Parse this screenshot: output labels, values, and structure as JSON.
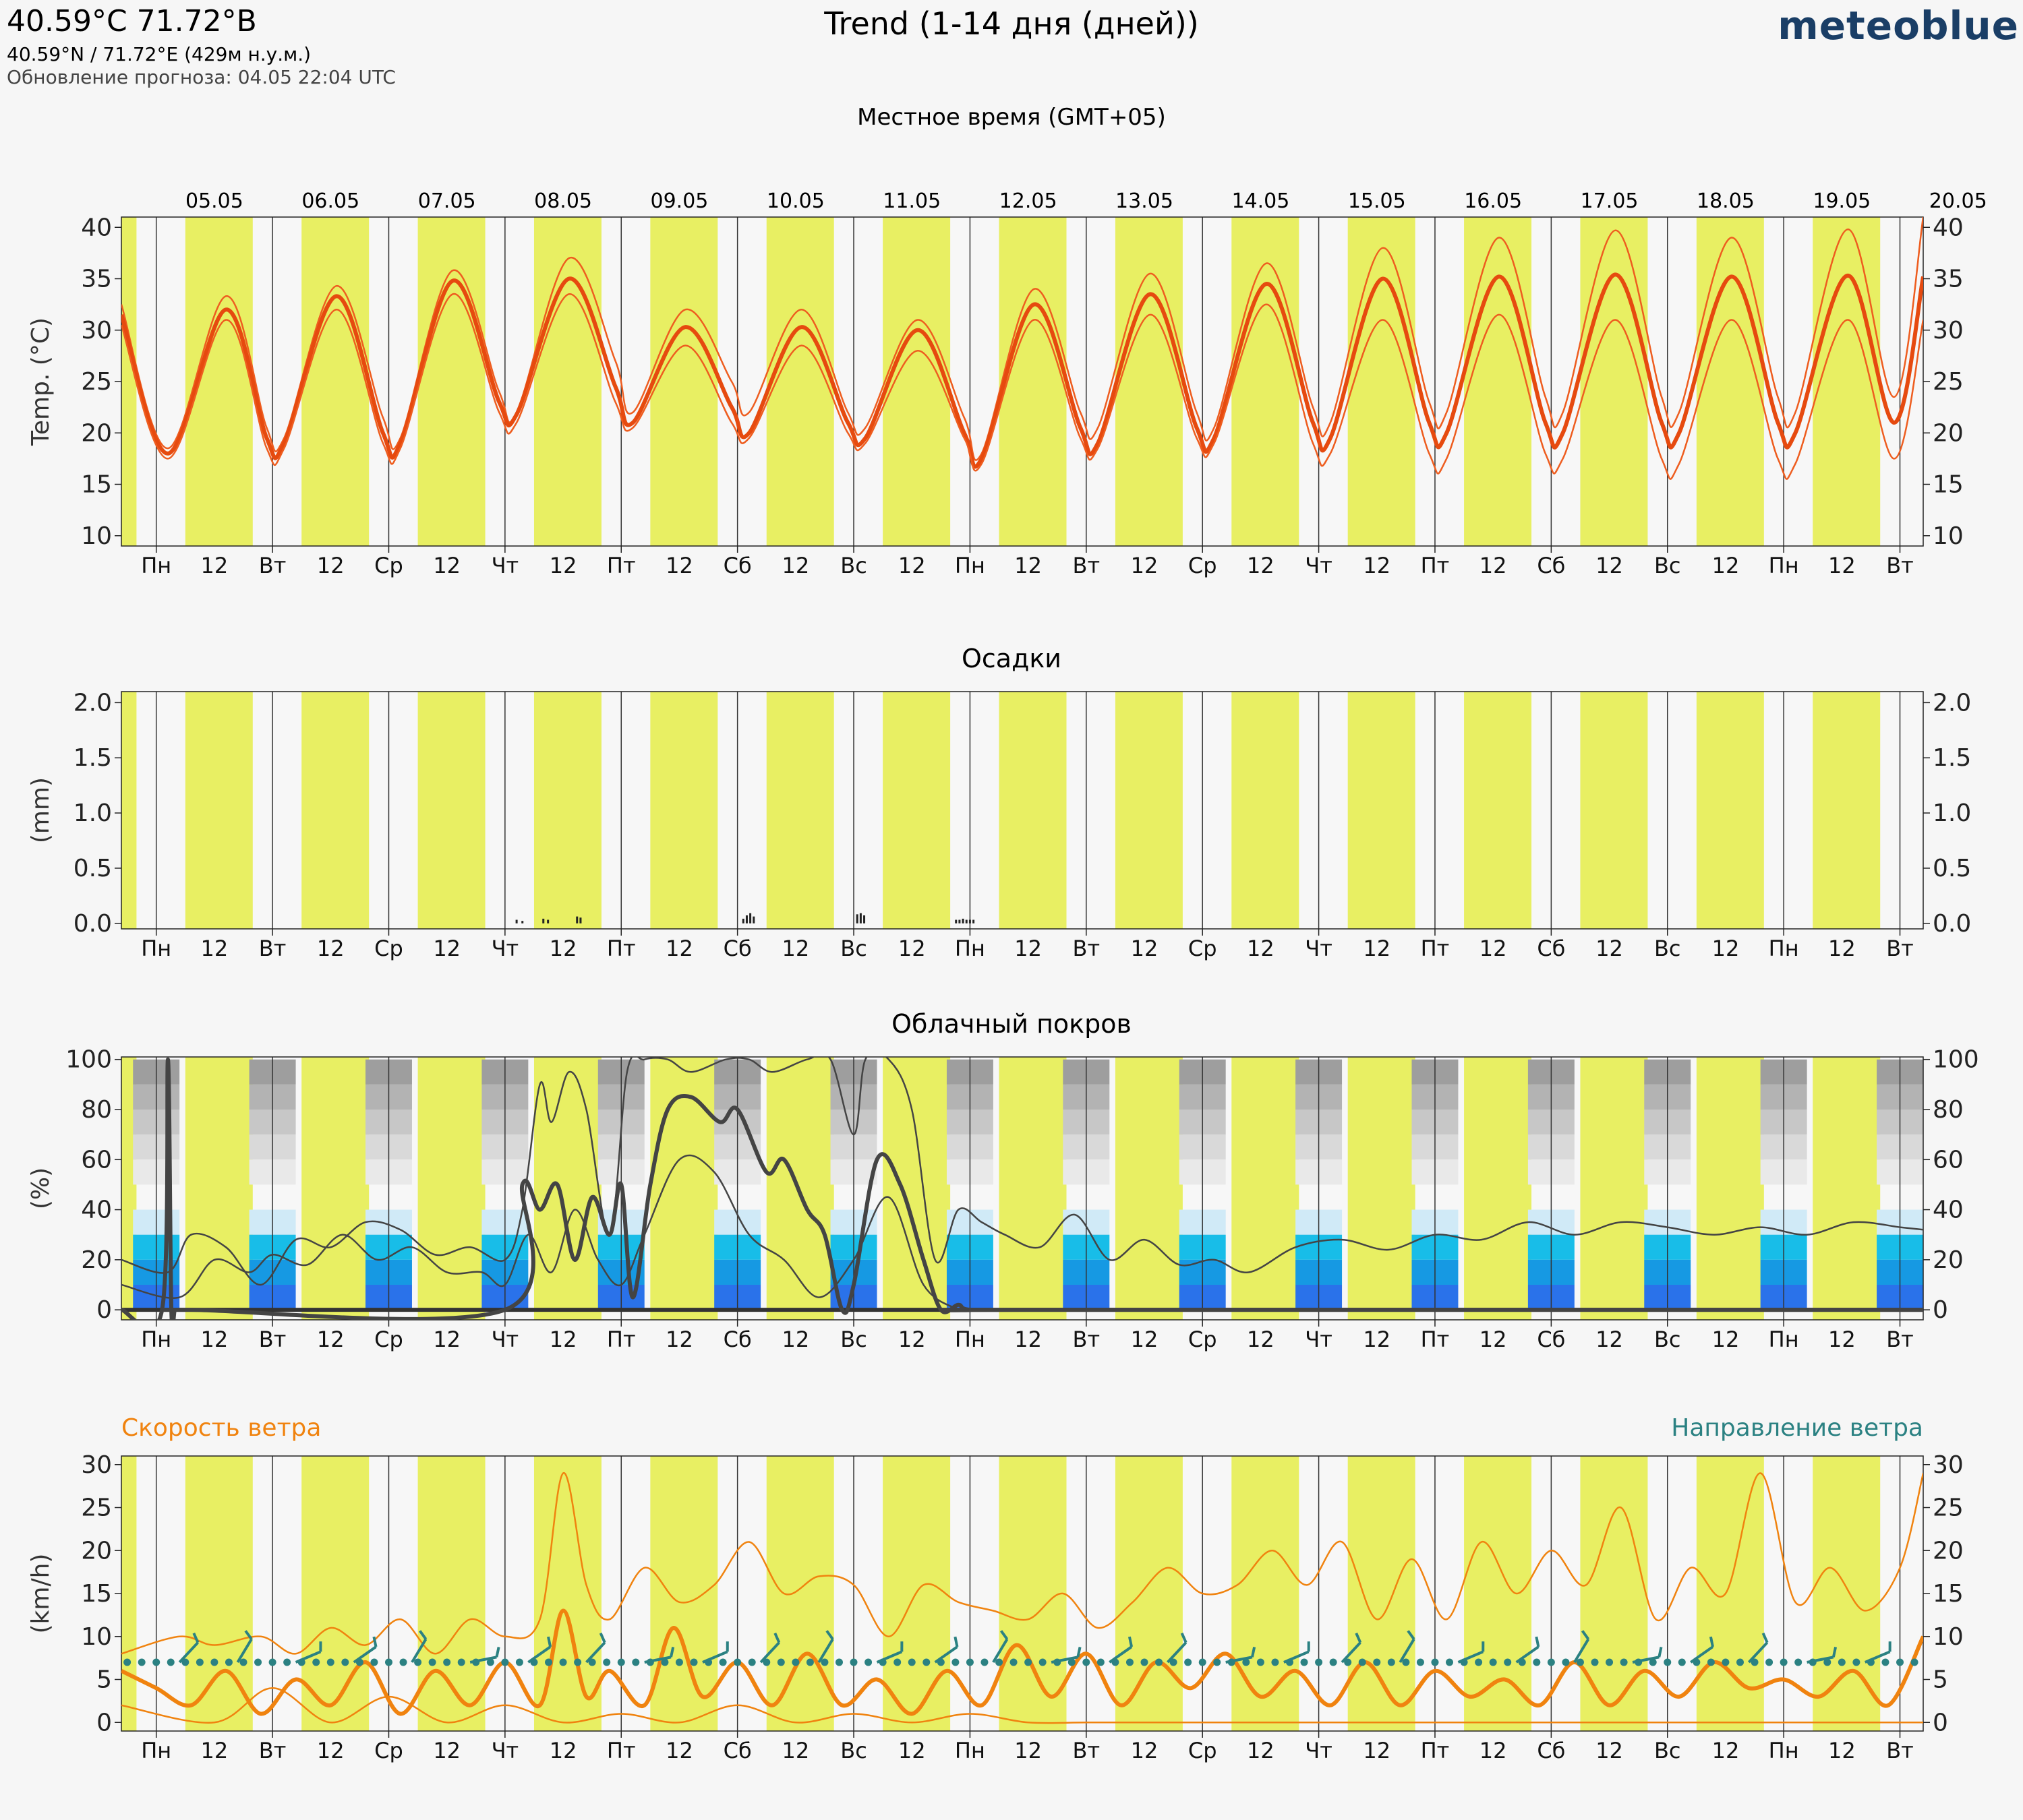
{
  "header": {
    "coords": "40.59°C 71.72°В",
    "subtitle": "40.59°N / 71.72°E (429м н.у.м.)",
    "updated": "Обновление прогноза: 04.05 22:04 UTC",
    "title": "Trend (1-14 дня (дней))",
    "brand": "meteoblue",
    "local_time": "Местное время (GMT+05)"
  },
  "dates": [
    "05.05",
    "06.05",
    "07.05",
    "08.05",
    "09.05",
    "10.05",
    "11.05",
    "12.05",
    "13.05",
    "14.05",
    "15.05",
    "16.05",
    "17.05",
    "18.05",
    "19.05",
    "20.05"
  ],
  "weekdays": [
    "Пн",
    "Вт",
    "Ср",
    "Чт",
    "Пт",
    "Сб",
    "Вс",
    "Пн",
    "Вт",
    "Ср",
    "Чт",
    "Пт",
    "Сб",
    "Вс",
    "Пн",
    "Вт"
  ],
  "noon_label": "12",
  "colors": {
    "daylight": "#e8ef63",
    "temperature": "#e64a0f",
    "temperature_band": "#ee5d1f",
    "precip": "#222222",
    "cloud_line": "#444444",
    "wind_speed": "#f0830f",
    "wind_dir": "#2b8182",
    "cloud_high": [
      "#9e9e9e",
      "#b3b3b3",
      "#c7c7c7",
      "#d9d9d9",
      "#e9e9e9"
    ],
    "cloud_low": [
      "#d0eaf7",
      "#18bde8",
      "#1699e3",
      "#2a72ea"
    ]
  },
  "chart_data": [
    {
      "type": "line",
      "id": "temperature",
      "ylabel": "Temp. (°C)",
      "ylim": [
        9,
        41
      ],
      "yticks": [
        10,
        15,
        20,
        25,
        30,
        35,
        40
      ],
      "x_unit": "days since 05.05 00:00 local",
      "series": [
        {
          "role": "max",
          "x": [
            -0.3,
            0.1,
            0.6,
            0.95,
            1.1,
            1.55,
            1.95,
            2.1,
            2.55,
            2.95,
            3.1,
            3.55,
            3.95,
            4.1,
            4.55,
            4.95,
            5.1,
            5.55,
            5.95,
            6.1,
            6.55,
            6.95,
            7.1,
            7.55,
            7.95,
            8.1,
            8.55,
            8.95,
            9.1,
            9.55,
            9.95,
            10.1,
            10.55,
            10.95,
            11.1,
            11.55,
            11.95,
            12.1,
            12.55,
            12.95,
            13.1,
            13.55,
            13.95,
            14.1,
            14.55,
            14.95,
            15.2
          ],
          "y": [
            32.5,
            18.5,
            33.3,
            20.5,
            19.5,
            34.3,
            21.5,
            19.5,
            35.8,
            24,
            22,
            37,
            27,
            22,
            32,
            25,
            22,
            32,
            22,
            20.5,
            31,
            21.5,
            18,
            34,
            22,
            20.5,
            35.5,
            22,
            20.5,
            36.5,
            22.5,
            21,
            38,
            23,
            22,
            39,
            23.5,
            22,
            39.7,
            23.5,
            22,
            39,
            23.5,
            22,
            39.8,
            23.5,
            41
          ]
        },
        {
          "role": "mean",
          "x": [
            -0.3,
            0.1,
            0.6,
            0.95,
            1.1,
            1.55,
            1.95,
            2.1,
            2.55,
            2.95,
            3.1,
            3.55,
            3.95,
            4.1,
            4.55,
            4.95,
            5.1,
            5.55,
            5.95,
            6.1,
            6.55,
            6.95,
            7.1,
            7.55,
            7.95,
            8.1,
            8.55,
            8.95,
            9.1,
            9.55,
            9.95,
            10.1,
            10.55,
            10.95,
            11.1,
            11.55,
            11.95,
            12.1,
            12.55,
            12.95,
            13.1,
            13.55,
            13.95,
            14.1,
            14.55,
            14.95,
            15.2
          ],
          "y": [
            31.5,
            18,
            32,
            19.5,
            19,
            33.3,
            20,
            19,
            34.8,
            23,
            21.8,
            35,
            24.5,
            21,
            30.3,
            22.5,
            20,
            30.3,
            21,
            19.5,
            30,
            20,
            17.5,
            32.5,
            20.5,
            19,
            33.5,
            20.5,
            19.5,
            34.5,
            21,
            19.5,
            35,
            21,
            20,
            35.2,
            21,
            20,
            35.4,
            21,
            20,
            35.2,
            21,
            20,
            35.3,
            21,
            35.2
          ]
        },
        {
          "role": "min",
          "x": [
            -0.3,
            0.1,
            0.6,
            0.95,
            1.1,
            1.55,
            1.95,
            2.1,
            2.55,
            2.95,
            3.1,
            3.55,
            3.95,
            4.1,
            4.55,
            4.95,
            5.1,
            5.55,
            5.95,
            6.1,
            6.55,
            6.95,
            7.1,
            7.55,
            7.95,
            8.1,
            8.55,
            8.95,
            9.1,
            9.55,
            9.95,
            10.1,
            10.55,
            10.95,
            11.1,
            11.55,
            11.95,
            12.1,
            12.55,
            12.95,
            13.1,
            13.55,
            13.95,
            14.1,
            14.55,
            14.95,
            15.2
          ],
          "y": [
            30.5,
            17.5,
            31,
            18.5,
            18.5,
            32,
            19,
            18.5,
            33.5,
            22,
            21,
            33.5,
            23,
            20.5,
            28.5,
            21,
            19.5,
            28.5,
            20,
            19,
            28,
            19.5,
            17,
            31,
            19.5,
            18.5,
            31.5,
            19.5,
            19,
            32.5,
            19,
            18,
            31,
            18,
            17.5,
            31.5,
            18,
            17.5,
            31,
            17.5,
            17,
            31,
            17.5,
            17,
            31,
            17.5,
            31
          ]
        }
      ]
    },
    {
      "type": "bar",
      "id": "precipitation",
      "title": "Осадки",
      "ylabel": "(mm)",
      "ylim": [
        -0.05,
        2.1
      ],
      "yticks": [
        "0.0",
        "0.5",
        "1.0",
        "1.5",
        "2.0"
      ],
      "x": [
        3.1,
        3.15,
        3.33,
        3.37,
        3.62,
        3.65,
        5.05,
        5.08,
        5.11,
        5.14,
        6.03,
        6.06,
        6.09,
        6.88,
        6.91,
        6.94,
        6.97,
        7.0,
        7.03
      ],
      "values": [
        0.02,
        0.01,
        0.03,
        0.02,
        0.05,
        0.04,
        0.03,
        0.06,
        0.08,
        0.05,
        0.07,
        0.08,
        0.06,
        0.02,
        0.02,
        0.03,
        0.02,
        0.02,
        0.02
      ]
    },
    {
      "type": "line",
      "id": "cloud_cover",
      "title": "Облачный покров",
      "ylabel": "(%)",
      "ylim": [
        -4,
        101
      ],
      "yticks": [
        0,
        20,
        40,
        60,
        80,
        100
      ],
      "series": [
        {
          "role": "mean",
          "x": [
            -0.3,
            0.05,
            0.1,
            0.13,
            0.16,
            0.2,
            0.3,
            3.0,
            3.15,
            3.3,
            3.45,
            3.6,
            3.75,
            3.9,
            4.0,
            4.1,
            4.25,
            4.4,
            4.6,
            4.85,
            5.0,
            5.25,
            5.4,
            5.6,
            5.75,
            5.9,
            6.0,
            6.2,
            6.4,
            6.6,
            6.75,
            6.9,
            7.0,
            7.5,
            15.2
          ],
          "y": [
            0,
            0,
            100,
            0,
            0,
            0,
            0,
            0,
            50,
            40,
            50,
            20,
            45,
            30,
            50,
            5,
            50,
            80,
            85,
            75,
            80,
            55,
            60,
            40,
            30,
            0,
            10,
            60,
            50,
            20,
            0,
            2,
            0,
            0,
            0
          ]
        },
        {
          "role": "max",
          "x": [
            -0.3,
            0.1,
            0.3,
            0.6,
            0.9,
            1.2,
            1.5,
            1.8,
            2.1,
            2.4,
            2.7,
            3.0,
            3.15,
            3.3,
            3.4,
            3.55,
            3.7,
            3.9,
            4.05,
            4.2,
            4.4,
            4.6,
            4.9,
            5.1,
            5.3,
            5.6,
            5.8,
            6.0,
            6.1,
            6.3,
            6.5,
            6.7,
            6.9,
            7.1,
            7.3,
            7.6,
            7.9,
            8.2,
            8.5,
            8.8,
            9.1,
            9.4,
            9.8,
            10.2,
            10.6,
            11.0,
            11.4,
            11.8,
            12.2,
            12.6,
            13.0,
            13.4,
            13.8,
            14.2,
            14.6,
            15.0,
            15.2
          ],
          "y": [
            20,
            15,
            30,
            25,
            10,
            28,
            25,
            35,
            32,
            22,
            25,
            20,
            40,
            90,
            75,
            95,
            80,
            30,
            95,
            100,
            100,
            95,
            100,
            100,
            95,
            100,
            100,
            70,
            100,
            100,
            80,
            20,
            40,
            35,
            30,
            25,
            38,
            20,
            28,
            18,
            20,
            15,
            25,
            28,
            24,
            30,
            28,
            35,
            30,
            35,
            33,
            30,
            33,
            30,
            35,
            33,
            32
          ]
        },
        {
          "role": "min",
          "x": [
            -0.3,
            0.2,
            0.5,
            0.8,
            1.0,
            1.3,
            1.6,
            1.9,
            2.2,
            2.5,
            2.8,
            3.0,
            3.2,
            3.4,
            3.6,
            3.8,
            4.0,
            4.2,
            4.5,
            4.8,
            5.1,
            5.4,
            5.7,
            6.0,
            6.3,
            6.6,
            6.9
          ],
          "y": [
            10,
            5,
            20,
            15,
            22,
            18,
            30,
            20,
            25,
            15,
            15,
            10,
            30,
            15,
            40,
            20,
            10,
            30,
            60,
            55,
            30,
            20,
            5,
            20,
            45,
            10,
            0
          ]
        }
      ]
    },
    {
      "type": "line",
      "id": "wind",
      "title_left": "Скорость ветра",
      "title_right": "Направление ветра",
      "ylabel": "(km/h)",
      "ylim": [
        -1,
        31
      ],
      "yticks": [
        0,
        5,
        10,
        15,
        20,
        25,
        30
      ],
      "direction_y": 7,
      "series": [
        {
          "role": "mean",
          "x": [
            -0.3,
            0.0,
            0.3,
            0.6,
            0.9,
            1.2,
            1.5,
            1.8,
            2.1,
            2.4,
            2.7,
            3.0,
            3.3,
            3.5,
            3.7,
            3.9,
            4.2,
            4.45,
            4.7,
            5.0,
            5.3,
            5.6,
            5.9,
            6.2,
            6.5,
            6.8,
            7.1,
            7.4,
            7.7,
            8.0,
            8.3,
            8.6,
            8.9,
            9.2,
            9.5,
            9.8,
            10.1,
            10.4,
            10.7,
            11.0,
            11.3,
            11.6,
            11.9,
            12.2,
            12.5,
            12.8,
            13.1,
            13.4,
            13.7,
            14.0,
            14.3,
            14.6,
            14.9,
            15.2
          ],
          "y": [
            6,
            4,
            2,
            6,
            1,
            5,
            2,
            7,
            1,
            6,
            2,
            7,
            2,
            13,
            3,
            6,
            2,
            11,
            3,
            7,
            2,
            8,
            2,
            5,
            1,
            6,
            2,
            9,
            3,
            8,
            2,
            7,
            4,
            8,
            3,
            6,
            2,
            7,
            2,
            6,
            3,
            5,
            2,
            7,
            2,
            6,
            3,
            7,
            4,
            5,
            3,
            6,
            2,
            10
          ]
        },
        {
          "role": "max",
          "x": [
            -0.3,
            0.2,
            0.5,
            0.9,
            1.2,
            1.5,
            1.8,
            2.1,
            2.4,
            2.7,
            3.0,
            3.3,
            3.5,
            3.7,
            3.9,
            4.2,
            4.5,
            4.8,
            5.1,
            5.4,
            5.7,
            6.0,
            6.3,
            6.6,
            6.9,
            7.2,
            7.5,
            7.8,
            8.1,
            8.4,
            8.7,
            9.0,
            9.3,
            9.6,
            9.9,
            10.2,
            10.5,
            10.8,
            11.1,
            11.4,
            11.7,
            12.0,
            12.3,
            12.6,
            12.9,
            13.2,
            13.5,
            13.8,
            14.1,
            14.4,
            14.7,
            15.0,
            15.2
          ],
          "y": [
            8,
            10,
            9,
            10,
            8,
            11,
            9,
            12,
            8,
            12,
            10,
            12,
            29,
            16,
            12,
            18,
            14,
            16,
            21,
            15,
            17,
            16,
            10,
            16,
            14,
            13,
            12,
            15,
            11,
            14,
            18,
            15,
            16,
            20,
            16,
            21,
            12,
            19,
            12,
            21,
            15,
            20,
            16,
            25,
            12,
            18,
            15,
            29,
            14,
            18,
            13,
            18,
            29
          ]
        },
        {
          "role": "min",
          "x": [
            -0.3,
            0.5,
            1.0,
            1.5,
            2.0,
            2.5,
            3.0,
            3.5,
            4.0,
            4.5,
            5.0,
            5.5,
            6.0,
            6.5,
            7.0,
            7.5,
            8.0,
            8.5,
            9.0,
            9.5,
            10.0,
            10.5,
            11.0,
            11.5,
            12.0,
            12.5,
            13.0,
            13.5,
            14.0,
            14.5,
            15.0,
            15.2
          ],
          "y": [
            2,
            0,
            4,
            0,
            3,
            0,
            2,
            0,
            1,
            0,
            2,
            0,
            1,
            0,
            1,
            0,
            0,
            0,
            0,
            0,
            0,
            0,
            0,
            0,
            0,
            0,
            0,
            0,
            0,
            0,
            0,
            0
          ]
        }
      ]
    }
  ]
}
